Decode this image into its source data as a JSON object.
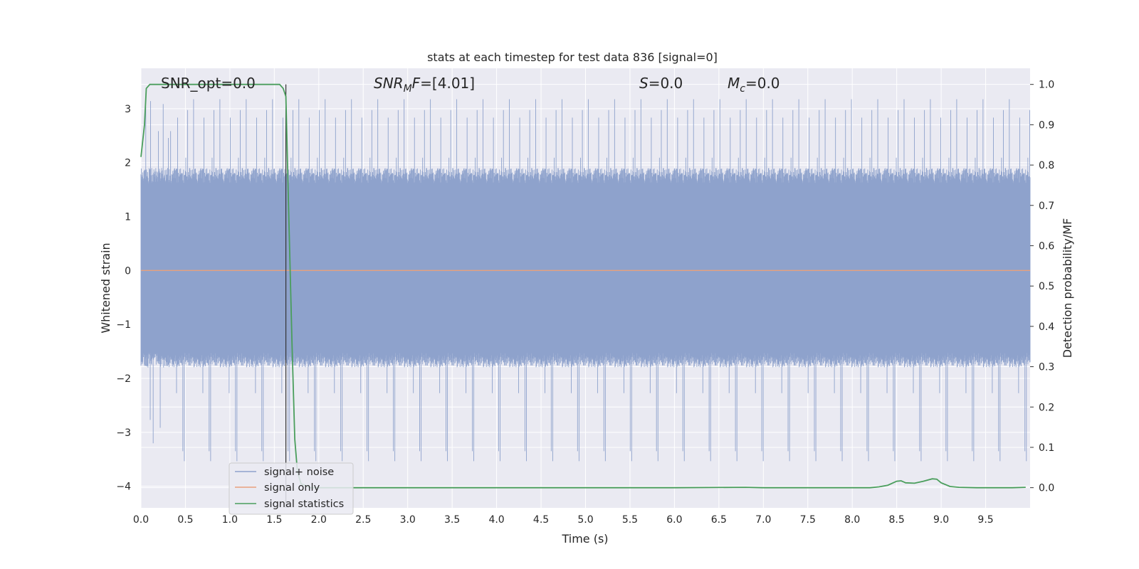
{
  "chart_data": {
    "type": "line",
    "title": "stats at each timestep for test data 836 [signal=0]",
    "xlabel": "Time (s)",
    "ylabel_left": "Whitened strain",
    "ylabel_right": "Detection probability/MF",
    "xlim": [
      0.0,
      10.0
    ],
    "ylim_left": [
      -4.4,
      3.75
    ],
    "ylim_right": [
      -0.05,
      1.04
    ],
    "x_ticks": [
      "0.0",
      "0.5",
      "1.0",
      "1.5",
      "2.0",
      "2.5",
      "3.0",
      "3.5",
      "4.0",
      "4.5",
      "5.0",
      "5.5",
      "6.0",
      "6.5",
      "7.0",
      "7.5",
      "8.0",
      "8.5",
      "9.0",
      "9.5"
    ],
    "y_left_ticks": [
      "3",
      "2",
      "1",
      "0",
      "−1",
      "−2",
      "−3",
      "−4"
    ],
    "y_right_ticks": [
      "1.0",
      "0.9",
      "0.8",
      "0.7",
      "0.6",
      "0.5",
      "0.4",
      "0.3",
      "0.2",
      "0.1",
      "0.0"
    ],
    "grid": true,
    "legend_position": "lower-left",
    "annotations": {
      "snr_opt": "SNR_opt=0.0",
      "snr_mf_main": "SNR",
      "snr_mf_sub": "M",
      "snr_mf_rest": "F",
      "snr_mf_value": "=[4.01]",
      "s_sym": "S",
      "s_value": "=0.0",
      "mc_sym": "M",
      "mc_sub": "c",
      "mc_value": "=0.0"
    },
    "vline_x": 1.63,
    "series": [
      {
        "name": "signal+ noise",
        "axis": "left",
        "color": "#8ea2cc",
        "style": "noise",
        "envelope_upper": 1.9,
        "envelope_lower": -1.8,
        "peak_max": 3.3,
        "trough_min": -3.6
      },
      {
        "name": "signal only",
        "axis": "left",
        "color": "#e8a07c",
        "x": [
          0.0,
          10.0
        ],
        "y": [
          0.0,
          0.0
        ]
      },
      {
        "name": "signal statistics",
        "axis": "right",
        "color": "#4a9e5c",
        "x": [
          0.0,
          0.04,
          0.06,
          0.1,
          0.2,
          0.4,
          0.6,
          0.8,
          1.0,
          1.2,
          1.4,
          1.56,
          1.6,
          1.63,
          1.66,
          1.7,
          1.73,
          1.76,
          1.8,
          1.9,
          2.0,
          3.0,
          4.0,
          5.0,
          6.0,
          6.8,
          7.0,
          8.0,
          8.2,
          8.3,
          8.4,
          8.5,
          8.55,
          8.6,
          8.7,
          8.8,
          8.9,
          8.95,
          9.0,
          9.1,
          9.2,
          9.4,
          9.6,
          9.8,
          9.95
        ],
        "y": [
          0.82,
          0.9,
          0.99,
          1.0,
          1.0,
          1.0,
          1.0,
          1.0,
          1.0,
          1.0,
          1.0,
          1.0,
          0.99,
          0.97,
          0.7,
          0.35,
          0.12,
          0.04,
          0.01,
          0.0,
          0.0,
          0.0,
          0.0,
          0.0,
          0.0,
          0.001,
          0.0,
          0.0,
          0.0,
          0.002,
          0.006,
          0.016,
          0.017,
          0.012,
          0.011,
          0.016,
          0.022,
          0.021,
          0.012,
          0.003,
          0.001,
          0.0,
          0.0,
          0.0,
          0.001
        ]
      }
    ]
  }
}
